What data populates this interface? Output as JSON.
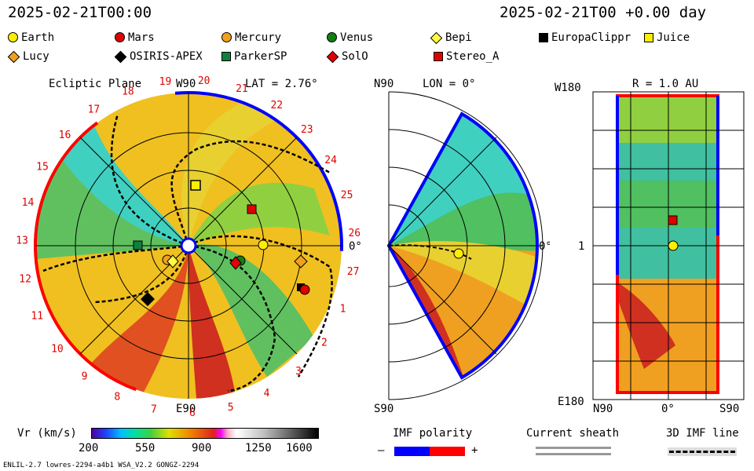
{
  "header": {
    "datetime_left": "2025-02-21T00:00",
    "datetime_right": "2025-02-21T00 +0.00 day"
  },
  "legend": [
    {
      "name": "Earth",
      "shape": "circle",
      "color": "#ffee00"
    },
    {
      "name": "Mars",
      "shape": "circle",
      "color": "#e00000"
    },
    {
      "name": "Mercury",
      "shape": "circle",
      "color": "#f0a020"
    },
    {
      "name": "Venus",
      "shape": "circle",
      "color": "#108010"
    },
    {
      "name": "Bepi",
      "shape": "diamond",
      "color": "#ffff40"
    },
    {
      "name": "EuropaClippr",
      "shape": "square",
      "color": "#000000"
    },
    {
      "name": "Juice",
      "shape": "square",
      "color": "#ffee00"
    },
    {
      "name": "Lucy",
      "shape": "diamond",
      "color": "#f0a020"
    },
    {
      "name": "OSIRIS-APEX",
      "shape": "diamond",
      "color": "#000000"
    },
    {
      "name": "ParkerSP",
      "shape": "square",
      "color": "#108040"
    },
    {
      "name": "SolO",
      "shape": "diamond",
      "color": "#e00000"
    },
    {
      "name": "Stereo_A",
      "shape": "square",
      "color": "#e00000"
    }
  ],
  "ecliptic": {
    "title": "Ecliptic Plane",
    "lat_label": "LAT = 2.76°",
    "top_label": "W90",
    "bottom_label": "E90",
    "right_label": "0°",
    "sectors": [
      "19",
      "20",
      "21",
      "22",
      "23",
      "24",
      "25",
      "26",
      "27",
      "1",
      "2",
      "3",
      "4",
      "5",
      "6",
      "7",
      "8",
      "9",
      "10",
      "11",
      "12",
      "13",
      "14",
      "15",
      "16",
      "17",
      "18"
    ]
  },
  "meridional": {
    "title": "LON = 0°",
    "top_label": "N90",
    "bottom_label": "S90",
    "right_label": "0°"
  },
  "radial": {
    "title": "R = 1.0 AU",
    "top_left_label": "W180",
    "mid_left_label": "1",
    "bottom_left_label": "E180",
    "bottom_labels": [
      "N90",
      "0°",
      "S90"
    ]
  },
  "colorbar": {
    "label": "Vr (km/s)",
    "ticks": [
      "200",
      "550",
      "900",
      "1250",
      "1600"
    ]
  },
  "imf_polarity": {
    "label": "IMF polarity",
    "minus": "–",
    "plus": "+",
    "neg_color": "#0000ff",
    "pos_color": "#ff0000"
  },
  "current_sheath": {
    "label": "Current sheath"
  },
  "imf_line": {
    "label": "3D IMF line"
  },
  "footer": {
    "left": "ENLIL-2.7 lowres-2294-a4b1 WSA_V2.2 GONGZ-2294"
  }
}
